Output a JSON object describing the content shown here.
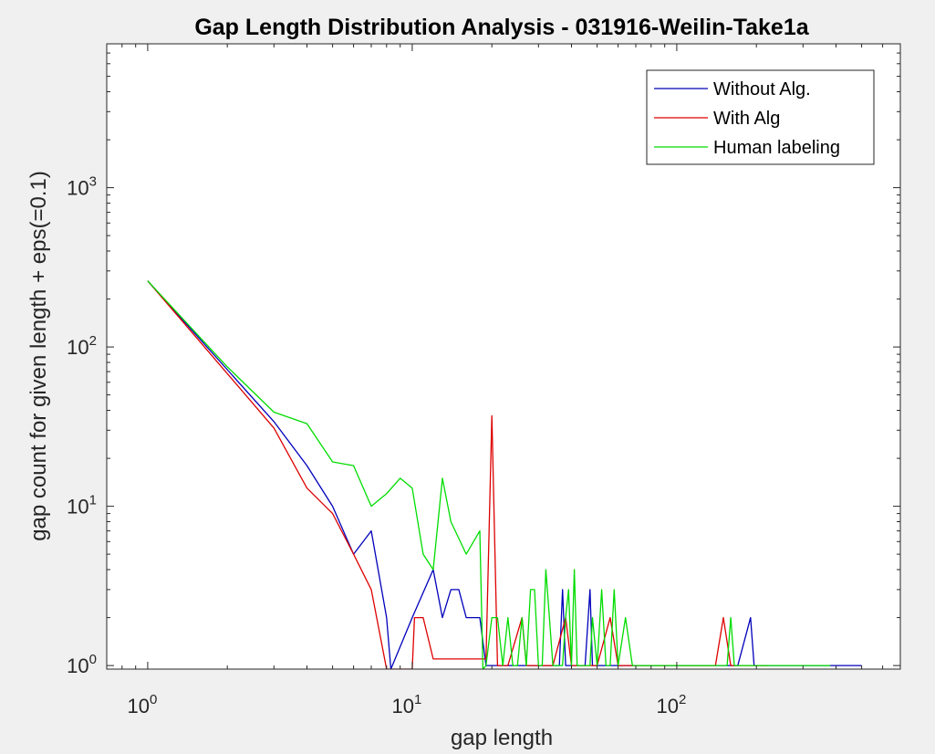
{
  "chart_data": {
    "type": "line",
    "title": "Gap Length Distribution Analysis - 031916-Weilin-Take1a",
    "xlabel": "gap length",
    "ylabel": "gap count for given length + eps(=0.1)",
    "xscale": "log",
    "yscale": "log",
    "xlim": [
      0.7,
      700
    ],
    "ylim": [
      0.95,
      8000
    ],
    "grid": false,
    "legend_position": "top-right",
    "x_ticks": [
      {
        "value": 1,
        "base": "10",
        "exp": "0"
      },
      {
        "value": 10,
        "base": "10",
        "exp": "1"
      },
      {
        "value": 100,
        "base": "10",
        "exp": "2"
      }
    ],
    "y_ticks": [
      {
        "value": 1,
        "base": "10",
        "exp": "0"
      },
      {
        "value": 10,
        "base": "10",
        "exp": "1"
      },
      {
        "value": 100,
        "base": "10",
        "exp": "2"
      },
      {
        "value": 1000,
        "base": "10",
        "exp": "3"
      }
    ],
    "series": [
      {
        "name": "Without Alg.",
        "color": "#0000bb",
        "points": [
          [
            1,
            260
          ],
          [
            2,
            72
          ],
          [
            3,
            34
          ],
          [
            4,
            18
          ],
          [
            5,
            10
          ],
          [
            6,
            5
          ],
          [
            7,
            7
          ],
          [
            8,
            2
          ],
          [
            8.3,
            0.95
          ],
          [
            10,
            2
          ],
          [
            12,
            4
          ],
          [
            13,
            2
          ],
          [
            14,
            3
          ],
          [
            15,
            3
          ],
          [
            16,
            2
          ],
          [
            17,
            2
          ],
          [
            18,
            2
          ],
          [
            19,
            1
          ],
          [
            20,
            1
          ],
          [
            24,
            1
          ],
          [
            25,
            1
          ],
          [
            26,
            1
          ],
          [
            27,
            1
          ],
          [
            28,
            1
          ],
          [
            29,
            1
          ],
          [
            30,
            1
          ],
          [
            31,
            1
          ],
          [
            33,
            1
          ],
          [
            34,
            1
          ],
          [
            36,
            1
          ],
          [
            37,
            3
          ],
          [
            38,
            1
          ],
          [
            40,
            1
          ],
          [
            43,
            1
          ],
          [
            45,
            1
          ],
          [
            47,
            3
          ],
          [
            48,
            1
          ],
          [
            52,
            1
          ],
          [
            55,
            1
          ],
          [
            59,
            1
          ],
          [
            63,
            1
          ],
          [
            68,
            1
          ],
          [
            73,
            1
          ],
          [
            80,
            1
          ],
          [
            88,
            1
          ],
          [
            96,
            1
          ],
          [
            105,
            1
          ],
          [
            120,
            1
          ],
          [
            133,
            1
          ],
          [
            150,
            1
          ],
          [
            158,
            1
          ],
          [
            170,
            1
          ],
          [
            190,
            2
          ],
          [
            196,
            1
          ],
          [
            210,
            1
          ],
          [
            240,
            1
          ],
          [
            255,
            1
          ],
          [
            270,
            1
          ],
          [
            290,
            1
          ],
          [
            330,
            1
          ],
          [
            360,
            1
          ],
          [
            460,
            1
          ],
          [
            480,
            1
          ],
          [
            500,
            1
          ]
        ]
      },
      {
        "name": "With Alg",
        "color": "#dd0000",
        "points": [
          [
            1,
            260
          ],
          [
            2,
            68
          ],
          [
            3,
            31
          ],
          [
            4,
            13
          ],
          [
            5,
            9
          ],
          [
            6,
            5
          ],
          [
            7,
            3
          ],
          [
            8,
            0.95
          ],
          [
            10,
            0.95
          ],
          [
            10.2,
            2
          ],
          [
            11,
            2
          ],
          [
            12,
            1.1
          ],
          [
            14,
            1.1
          ],
          [
            16,
            1.1
          ],
          [
            18,
            1.1
          ],
          [
            19,
            1.1
          ],
          [
            20,
            37
          ],
          [
            21,
            1
          ],
          [
            23,
            1
          ],
          [
            26,
            2
          ],
          [
            27,
            1
          ],
          [
            29,
            1
          ],
          [
            30,
            1
          ],
          [
            32,
            1
          ],
          [
            34,
            1
          ],
          [
            38,
            2
          ],
          [
            40,
            1
          ],
          [
            46,
            1
          ],
          [
            50,
            1
          ],
          [
            56,
            2
          ],
          [
            60,
            1
          ],
          [
            64,
            1
          ],
          [
            70,
            1
          ],
          [
            78,
            1
          ],
          [
            86,
            1
          ],
          [
            94,
            1
          ],
          [
            110,
            1
          ],
          [
            130,
            1
          ],
          [
            140,
            1
          ],
          [
            150,
            2
          ],
          [
            160,
            1
          ],
          [
            175,
            1
          ],
          [
            185,
            1
          ],
          [
            200,
            1
          ],
          [
            220,
            1
          ]
        ]
      },
      {
        "name": "Human labeling",
        "color": "#00dd00",
        "points": [
          [
            1,
            260
          ],
          [
            2,
            75
          ],
          [
            3,
            39
          ],
          [
            4,
            33
          ],
          [
            5,
            19
          ],
          [
            6,
            18
          ],
          [
            7,
            10
          ],
          [
            8,
            12
          ],
          [
            9,
            15
          ],
          [
            10,
            13
          ],
          [
            11,
            5
          ],
          [
            12,
            4
          ],
          [
            13,
            15
          ],
          [
            14,
            8
          ],
          [
            16,
            5
          ],
          [
            18,
            7
          ],
          [
            18.5,
            0.95
          ],
          [
            19,
            1
          ],
          [
            20,
            2
          ],
          [
            21,
            2
          ],
          [
            22,
            1
          ],
          [
            23,
            2
          ],
          [
            24,
            1
          ],
          [
            25,
            1
          ],
          [
            26,
            2
          ],
          [
            27,
            1
          ],
          [
            28,
            3
          ],
          [
            29,
            3
          ],
          [
            30,
            1
          ],
          [
            31,
            1
          ],
          [
            32,
            4
          ],
          [
            33,
            2
          ],
          [
            34,
            1
          ],
          [
            35,
            1
          ],
          [
            36,
            1
          ],
          [
            37,
            1
          ],
          [
            38,
            2
          ],
          [
            39,
            3
          ],
          [
            40,
            1
          ],
          [
            41,
            4
          ],
          [
            42,
            1
          ],
          [
            43,
            1
          ],
          [
            44,
            1
          ],
          [
            46,
            1
          ],
          [
            47,
            1
          ],
          [
            48,
            2
          ],
          [
            50,
            1
          ],
          [
            52,
            3
          ],
          [
            54,
            1
          ],
          [
            56,
            1
          ],
          [
            58,
            3
          ],
          [
            60,
            1
          ],
          [
            64,
            2
          ],
          [
            68,
            1
          ],
          [
            72,
            1
          ],
          [
            78,
            1
          ],
          [
            82,
            1
          ],
          [
            86,
            1
          ],
          [
            90,
            1
          ],
          [
            95,
            1
          ],
          [
            105,
            1
          ],
          [
            115,
            1
          ],
          [
            130,
            1
          ],
          [
            140,
            1
          ],
          [
            145,
            1
          ],
          [
            155,
            1
          ],
          [
            160,
            2
          ],
          [
            165,
            1
          ],
          [
            170,
            1
          ],
          [
            175,
            1
          ],
          [
            180,
            1
          ],
          [
            190,
            1
          ],
          [
            205,
            1
          ],
          [
            230,
            1
          ],
          [
            260,
            1
          ],
          [
            290,
            1
          ],
          [
            330,
            1
          ],
          [
            380,
            1
          ]
        ]
      }
    ]
  }
}
